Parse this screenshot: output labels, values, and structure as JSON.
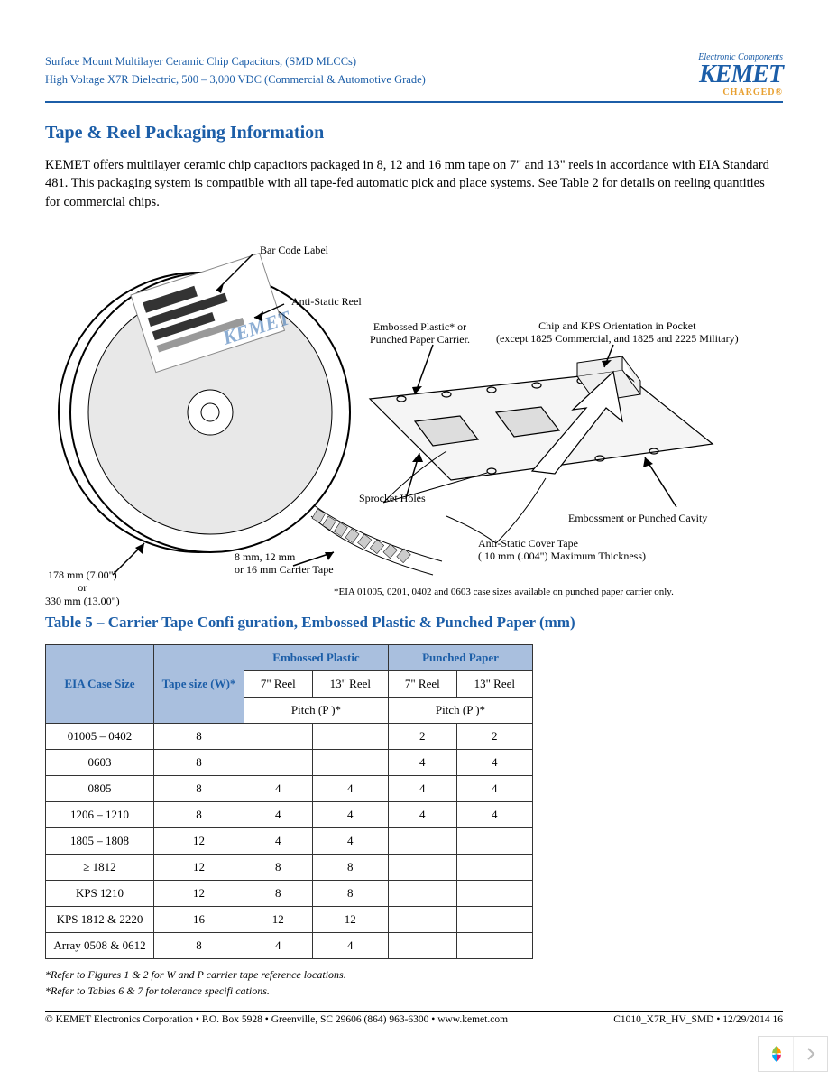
{
  "header": {
    "line1": "Surface Mount Multilayer Ceramic Chip Capacitors, (SMD MLCCs)",
    "line2": "High Voltage X7R Dielectric, 500 – 3,000 VDC (Commercial & Automotive Grade)",
    "tag": "Electronic Components",
    "brand": "KEMET",
    "charged": "CHARGED"
  },
  "section": {
    "title": "Tape & Reel Packaging Information",
    "para": "KEMET offers multilayer ceramic chip capacitors packaged in 8, 12 and 16 mm tape on 7\" and 13\" reels in accordance with EIA Standard 481. This packaging system is compatible with all tape-fed automatic pick and place systems. See Table 2 for details on reeling quantities for commercial chips."
  },
  "diagram": {
    "bar_code": "Bar Code Label",
    "anti_reel": "Anti-Static Reel",
    "emboss_carrier": "Embossed Plastic* or\nPunched Paper Carrier.",
    "chip_orient": "Chip and KPS Orientation in Pocket\n(except 1825 Commercial, and 1825 and 2225 Military)",
    "sprocket": "Sprocket Holes",
    "emboss_cavity": "Embossment or Punched Cavity",
    "carrier_tape": "8 mm, 12 mm\nor 16 mm Carrier Tape",
    "cover_tape": "Anti-Static Cover Tape\n(.10 mm (.004\") Maximum Thickness)",
    "reel_dim": "178 mm (7.00\")\nor\n330 mm (13.00\")",
    "eia_note": "*EIA 01005, 0201, 0402 and 0603 case sizes available on punched paper carrier only.",
    "kemet_mark": "KEMET"
  },
  "table": {
    "title": "Table 5 – Carrier Tape Confi guration, Embossed Plastic & Punched Paper (mm)",
    "col_case": "EIA Case Size",
    "col_tape": "Tape size (W)*",
    "group_embossed": "Embossed Plastic",
    "group_punched": "Punched Paper",
    "sub_7": "7\" Reel",
    "sub_13": "13\" Reel",
    "pitch": "Pitch (P )*",
    "rows": [
      {
        "case": "01005 – 0402",
        "tape": "8",
        "e7": "",
        "e13": "",
        "p7": "2",
        "p13": "2"
      },
      {
        "case": "0603",
        "tape": "8",
        "e7": "",
        "e13": "",
        "p7": "4",
        "p13": "4"
      },
      {
        "case": "0805",
        "tape": "8",
        "e7": "4",
        "e13": "4",
        "p7": "4",
        "p13": "4"
      },
      {
        "case": "1206 – 1210",
        "tape": "8",
        "e7": "4",
        "e13": "4",
        "p7": "4",
        "p13": "4"
      },
      {
        "case": "1805 – 1808",
        "tape": "12",
        "e7": "4",
        "e13": "4",
        "p7": "",
        "p13": ""
      },
      {
        "case": "≥ 1812",
        "tape": "12",
        "e7": "8",
        "e13": "8",
        "p7": "",
        "p13": ""
      },
      {
        "case": "KPS 1210",
        "tape": "12",
        "e7": "8",
        "e13": "8",
        "p7": "",
        "p13": ""
      },
      {
        "case": "KPS 1812 & 2220",
        "tape": "16",
        "e7": "12",
        "e13": "12",
        "p7": "",
        "p13": ""
      },
      {
        "case": "Array 0508 & 0612",
        "tape": "8",
        "e7": "4",
        "e13": "4",
        "p7": "",
        "p13": ""
      }
    ],
    "footnote1": "*Refer to Figures 1 & 2 for W and P    carrier tape reference locations.",
    "footnote2": "*Refer to Tables 6 & 7 for tolerance specifi cations."
  },
  "footer": {
    "left": "© KEMET Electronics Corporation • P.O. Box 5928 • Greenville, SC 29606 (864) 963-6300 • www.kemet.com",
    "right": "C1010_X7R_HV_SMD • 12/29/2014 16"
  },
  "colors": {
    "blue": "#1c5ea8",
    "header_bg": "#a9bfde",
    "orange": "#e8a030"
  }
}
